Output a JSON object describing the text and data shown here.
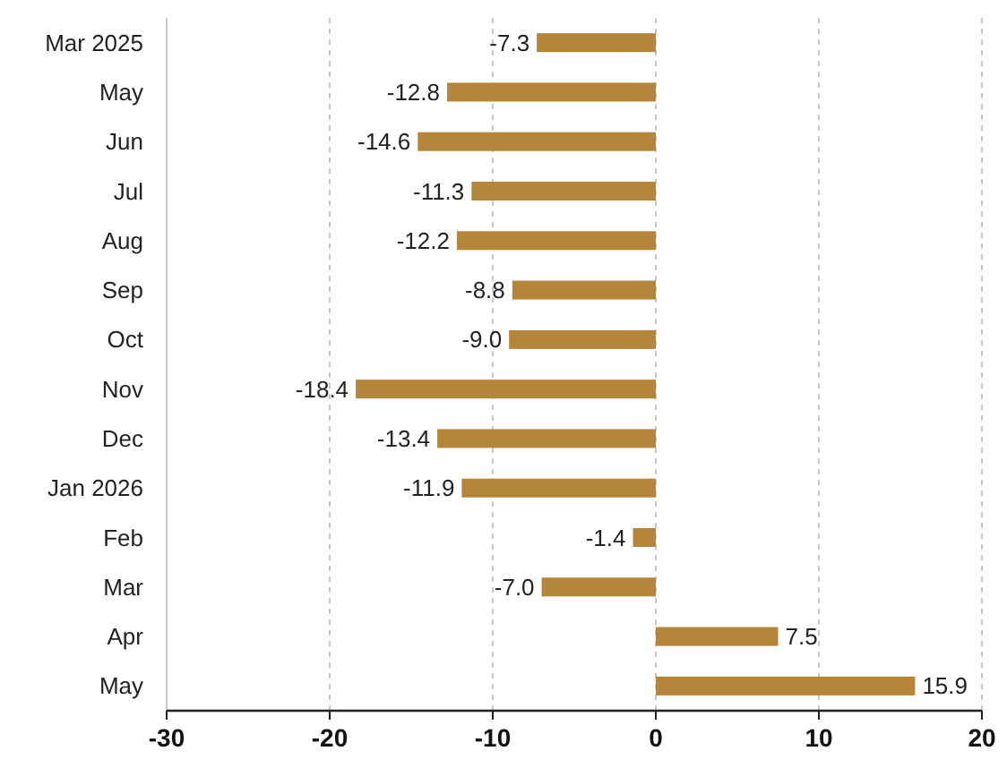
{
  "chart_data": {
    "type": "bar",
    "orientation": "horizontal",
    "categories": [
      "Mar 2025",
      "May",
      "Jun",
      "Jul",
      "Aug",
      "Sep",
      "Oct",
      "Nov",
      "Dec",
      "Jan 2026",
      "Feb",
      "Mar",
      "Apr",
      "May"
    ],
    "values": [
      -7.3,
      -12.8,
      -14.6,
      -11.3,
      -12.2,
      -8.8,
      -9.0,
      -18.4,
      -13.4,
      -11.9,
      -1.4,
      -7.0,
      7.5,
      15.9
    ],
    "value_labels": [
      "-7.3",
      "-12.8",
      "-14.6",
      "-11.3",
      "-12.2",
      "-8.8",
      "-9.0",
      "-18.4",
      "-13.4",
      "-11.9",
      "-1.4",
      "-7.0",
      "7.5",
      "15.9"
    ],
    "color": "#b5853a",
    "xlim": [
      -30,
      20
    ],
    "xticks": [
      -30,
      -20,
      -10,
      0,
      10,
      20
    ],
    "grid": "x"
  }
}
